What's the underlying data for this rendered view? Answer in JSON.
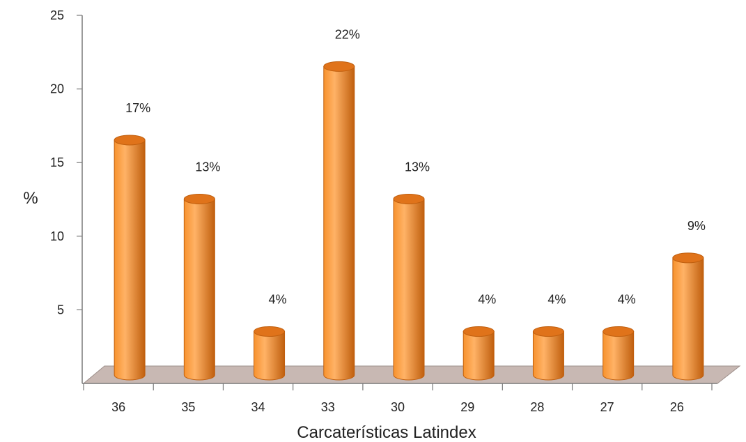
{
  "chart_data": {
    "type": "bar",
    "style": "3d-cylinder",
    "categories": [
      "36",
      "35",
      "34",
      "33",
      "30",
      "29",
      "28",
      "27",
      "26"
    ],
    "values": [
      17,
      13,
      4,
      22,
      13,
      4,
      4,
      4,
      9
    ],
    "data_labels": [
      "17%",
      "13%",
      "4%",
      "22%",
      "13%",
      "4%",
      "4%",
      "4%",
      "9%"
    ],
    "xlabel": "Carcaterísticas Latindex",
    "ylabel": "%",
    "ylim": [
      0,
      25
    ],
    "yticks": [
      "5",
      "10",
      "15",
      "20",
      "25"
    ],
    "grid": false,
    "legend": "none",
    "colors": {
      "bar_light": "#ffb266",
      "bar_mid": "#f7922e",
      "bar_dark": "#c05f0e",
      "bar_top": "#e0731a",
      "floor": "#c8b8b3",
      "floor_edge": "#9d8f8b",
      "axis": "#7a7a7a"
    }
  }
}
